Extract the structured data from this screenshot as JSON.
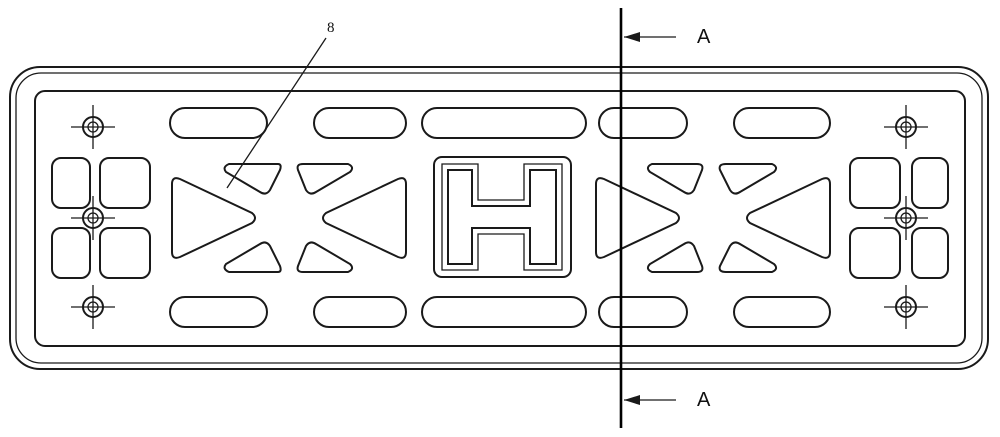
{
  "callout": {
    "part_number": "8"
  },
  "section": {
    "top_label": "A",
    "bottom_label": "A"
  },
  "emblem_letter": "H",
  "colors": {
    "line": "#1a1a1a",
    "background": "#ffffff"
  }
}
